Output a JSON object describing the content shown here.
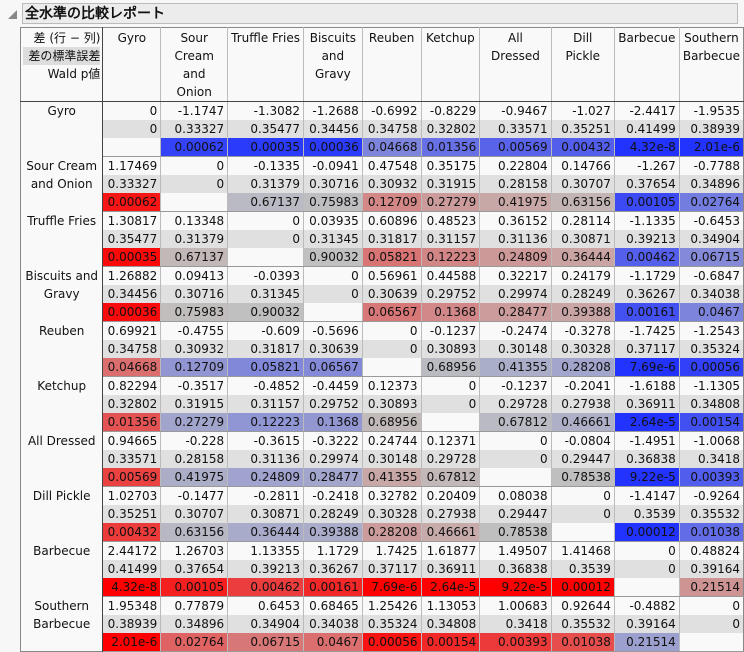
{
  "report": {
    "title": "全水準の比較レポート",
    "legend": [
      "差 (行 − 列)",
      "差の標準誤差",
      "Wald p値"
    ]
  },
  "levels": [
    "Gyro",
    "Sour Cream and Onion",
    "Truffle Fries",
    "Biscuits and Gravy",
    "Reuben",
    "Ketchup",
    "All Dressed",
    "Dill Pickle",
    "Barbecue",
    "Southern Barbecue"
  ],
  "colors": {
    "neg_sig": "#2233ff",
    "pos_sig": "#ff0000",
    "nonsig": "#c0c0c0"
  },
  "diff": [
    [
      "0",
      "-1.1747",
      "-1.3082",
      "-1.2688",
      "-0.6992",
      "-0.8229",
      "-0.9467",
      "-1.027",
      "-2.4417",
      "-1.9535"
    ],
    [
      "1.17469",
      "0",
      "-0.1335",
      "-0.0941",
      "0.47548",
      "0.35175",
      "0.22804",
      "0.14766",
      "-1.267",
      "-0.7788"
    ],
    [
      "1.30817",
      "0.13348",
      "0",
      "0.03935",
      "0.60896",
      "0.48523",
      "0.36152",
      "0.28114",
      "-1.1335",
      "-0.6453"
    ],
    [
      "1.26882",
      "0.09413",
      "-0.0393",
      "0",
      "0.56961",
      "0.44588",
      "0.32217",
      "0.24179",
      "-1.1729",
      "-0.6847"
    ],
    [
      "0.69921",
      "-0.4755",
      "-0.609",
      "-0.5696",
      "0",
      "-0.1237",
      "-0.2474",
      "-0.3278",
      "-1.7425",
      "-1.2543"
    ],
    [
      "0.82294",
      "-0.3517",
      "-0.4852",
      "-0.4459",
      "0.12373",
      "0",
      "-0.1237",
      "-0.2041",
      "-1.6188",
      "-1.1305"
    ],
    [
      "0.94665",
      "-0.228",
      "-0.3615",
      "-0.3222",
      "0.24744",
      "0.12371",
      "0",
      "-0.0804",
      "-1.4951",
      "-1.0068"
    ],
    [
      "1.02703",
      "-0.1477",
      "-0.2811",
      "-0.2418",
      "0.32782",
      "0.20409",
      "0.08038",
      "0",
      "-1.4147",
      "-0.9264"
    ],
    [
      "2.44172",
      "1.26703",
      "1.13355",
      "1.1729",
      "1.7425",
      "1.61877",
      "1.49507",
      "1.41468",
      "0",
      "0.48824"
    ],
    [
      "1.95348",
      "0.77879",
      "0.6453",
      "0.68465",
      "1.25426",
      "1.13053",
      "1.00683",
      "0.92644",
      "-0.4882",
      "0"
    ]
  ],
  "se": [
    [
      "0",
      "0.33327",
      "0.35477",
      "0.34456",
      "0.34758",
      "0.32802",
      "0.33571",
      "0.35251",
      "0.41499",
      "0.38939"
    ],
    [
      "0.33327",
      "0",
      "0.31379",
      "0.30716",
      "0.30932",
      "0.31915",
      "0.28158",
      "0.30707",
      "0.37654",
      "0.34896"
    ],
    [
      "0.35477",
      "0.31379",
      "0",
      "0.31345",
      "0.31817",
      "0.31157",
      "0.31136",
      "0.30871",
      "0.39213",
      "0.34904"
    ],
    [
      "0.34456",
      "0.30716",
      "0.31345",
      "0",
      "0.30639",
      "0.29752",
      "0.29974",
      "0.28249",
      "0.36267",
      "0.34038"
    ],
    [
      "0.34758",
      "0.30932",
      "0.31817",
      "0.30639",
      "0",
      "0.30893",
      "0.30148",
      "0.30328",
      "0.37117",
      "0.35324"
    ],
    [
      "0.32802",
      "0.31915",
      "0.31157",
      "0.29752",
      "0.30893",
      "0",
      "0.29728",
      "0.27938",
      "0.36911",
      "0.34808"
    ],
    [
      "0.33571",
      "0.28158",
      "0.31136",
      "0.29974",
      "0.30148",
      "0.29728",
      "0",
      "0.29447",
      "0.36838",
      "0.3418"
    ],
    [
      "0.35251",
      "0.30707",
      "0.30871",
      "0.28249",
      "0.30328",
      "0.27938",
      "0.29447",
      "0",
      "0.3539",
      "0.35532"
    ],
    [
      "0.41499",
      "0.37654",
      "0.39213",
      "0.36267",
      "0.37117",
      "0.36911",
      "0.36838",
      "0.3539",
      "0",
      "0.39164"
    ],
    [
      "0.38939",
      "0.34896",
      "0.34904",
      "0.34038",
      "0.35324",
      "0.34808",
      "0.3418",
      "0.35532",
      "0.39164",
      "0"
    ]
  ],
  "p": [
    [
      null,
      "0.00062",
      "0.00035",
      "0.00036",
      "0.04668",
      "0.01356",
      "0.00569",
      "0.00432",
      "4.32e-8",
      "2.01e-6"
    ],
    [
      "0.00062",
      null,
      "0.67137",
      "0.75983",
      "0.12709",
      "0.27279",
      "0.41975",
      "0.63156",
      "0.00105",
      "0.02764"
    ],
    [
      "0.00035",
      "0.67137",
      null,
      "0.90032",
      "0.05821",
      "0.12223",
      "0.24809",
      "0.36444",
      "0.00462",
      "0.06715"
    ],
    [
      "0.00036",
      "0.75983",
      "0.90032",
      null,
      "0.06567",
      "0.1368",
      "0.28477",
      "0.39388",
      "0.00161",
      "0.0467"
    ],
    [
      "0.04668",
      "0.12709",
      "0.05821",
      "0.06567",
      null,
      "0.68956",
      "0.41355",
      "0.28208",
      "7.69e-6",
      "0.00056"
    ],
    [
      "0.01356",
      "0.27279",
      "0.12223",
      "0.1368",
      "0.68956",
      null,
      "0.67812",
      "0.46661",
      "2.64e-5",
      "0.00154"
    ],
    [
      "0.00569",
      "0.41975",
      "0.24809",
      "0.28477",
      "0.41355",
      "0.67812",
      null,
      "0.78538",
      "9.22e-5",
      "0.00393"
    ],
    [
      "0.00432",
      "0.63156",
      "0.36444",
      "0.39388",
      "0.28208",
      "0.46661",
      "0.78538",
      null,
      "0.00012",
      "0.01038"
    ],
    [
      "4.32e-8",
      "0.00105",
      "0.00462",
      "0.00161",
      "7.69e-6",
      "2.64e-5",
      "9.22e-5",
      "0.00012",
      null,
      "0.21514"
    ],
    [
      "2.01e-6",
      "0.02764",
      "0.06715",
      "0.0467",
      "0.00056",
      "0.00154",
      "0.00393",
      "0.01038",
      "0.21514",
      null
    ]
  ]
}
